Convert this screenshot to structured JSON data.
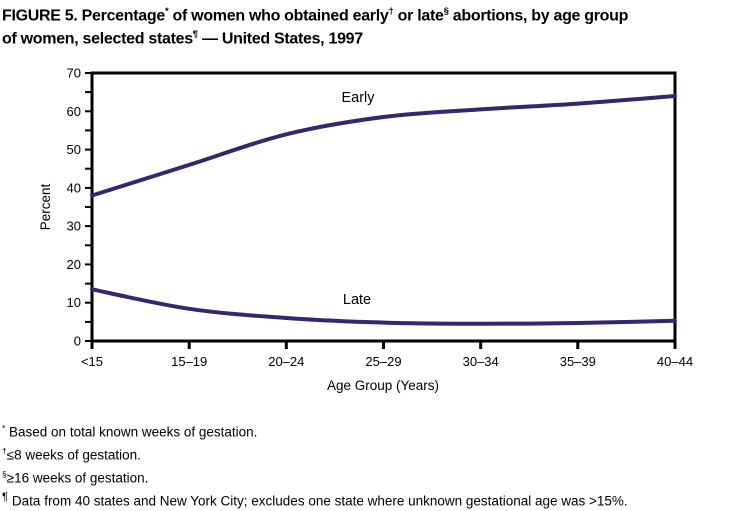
{
  "figure": {
    "title_segments": [
      {
        "text": "FIGURE 5. Percentage"
      },
      {
        "text": "*",
        "sup": true
      },
      {
        "text": " of women who obtained early"
      },
      {
        "text": "†",
        "sup": true
      },
      {
        "text": " or late"
      },
      {
        "text": "§",
        "sup": true
      },
      {
        "text": " abortions, by age group",
        "break_after": true
      },
      {
        "text": "of women, selected states"
      },
      {
        "text": "¶",
        "sup": true
      },
      {
        "text": " — United States, 1997"
      }
    ]
  },
  "chart_data": {
    "type": "line",
    "title": "",
    "xlabel": "Age Group (Years)",
    "ylabel": "Percent",
    "categories": [
      "<15",
      "15–19",
      "20–24",
      "25–29",
      "30–34",
      "35–39",
      "40–44"
    ],
    "series": [
      {
        "name": "Early",
        "values": [
          38,
          46,
          54,
          58.5,
          60.5,
          62,
          64
        ]
      },
      {
        "name": "Late",
        "values": [
          13.5,
          8.4,
          6,
          4.8,
          4.5,
          4.7,
          5.3
        ]
      }
    ],
    "ylim": [
      0,
      70
    ],
    "y_major_ticks": [
      0,
      10,
      20,
      30,
      40,
      50,
      60,
      70
    ],
    "y_minor_tick_step": 5,
    "grid": false,
    "legend": "inline-labels",
    "line_color": "#2e2a6d",
    "axis_color": "#000000"
  },
  "footnotes": [
    {
      "marker": "*",
      "text": " Based on total known weeks of gestation."
    },
    {
      "marker": "†",
      "text": "≤8 weeks of gestation."
    },
    {
      "marker": "§",
      "text": "≥16 weeks of gestation."
    },
    {
      "marker": "¶",
      "text": " Data from 40 states and New York City; excludes one state where unknown gestational age was >15%."
    }
  ]
}
